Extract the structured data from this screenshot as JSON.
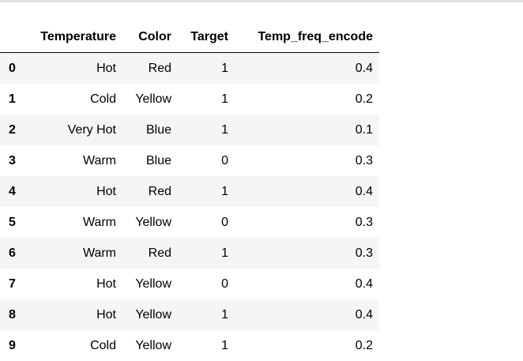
{
  "table": {
    "columns": [
      "Temperature",
      "Color",
      "Target",
      "Temp_freq_encode"
    ],
    "rows": [
      {
        "index": "0",
        "Temperature": "Hot",
        "Color": "Red",
        "Target": "1",
        "Temp_freq_encode": "0.4"
      },
      {
        "index": "1",
        "Temperature": "Cold",
        "Color": "Yellow",
        "Target": "1",
        "Temp_freq_encode": "0.2"
      },
      {
        "index": "2",
        "Temperature": "Very Hot",
        "Color": "Blue",
        "Target": "1",
        "Temp_freq_encode": "0.1"
      },
      {
        "index": "3",
        "Temperature": "Warm",
        "Color": "Blue",
        "Target": "0",
        "Temp_freq_encode": "0.3"
      },
      {
        "index": "4",
        "Temperature": "Hot",
        "Color": "Red",
        "Target": "1",
        "Temp_freq_encode": "0.4"
      },
      {
        "index": "5",
        "Temperature": "Warm",
        "Color": "Yellow",
        "Target": "0",
        "Temp_freq_encode": "0.3"
      },
      {
        "index": "6",
        "Temperature": "Warm",
        "Color": "Red",
        "Target": "1",
        "Temp_freq_encode": "0.3"
      },
      {
        "index": "7",
        "Temperature": "Hot",
        "Color": "Yellow",
        "Target": "0",
        "Temp_freq_encode": "0.4"
      },
      {
        "index": "8",
        "Temperature": "Hot",
        "Color": "Yellow",
        "Target": "1",
        "Temp_freq_encode": "0.4"
      },
      {
        "index": "9",
        "Temperature": "Cold",
        "Color": "Yellow",
        "Target": "1",
        "Temp_freq_encode": "0.2"
      }
    ]
  },
  "colors": {
    "stripe": "#f5f5f5",
    "header_rule": "#000000",
    "top_rule": "#e0e0e0"
  }
}
